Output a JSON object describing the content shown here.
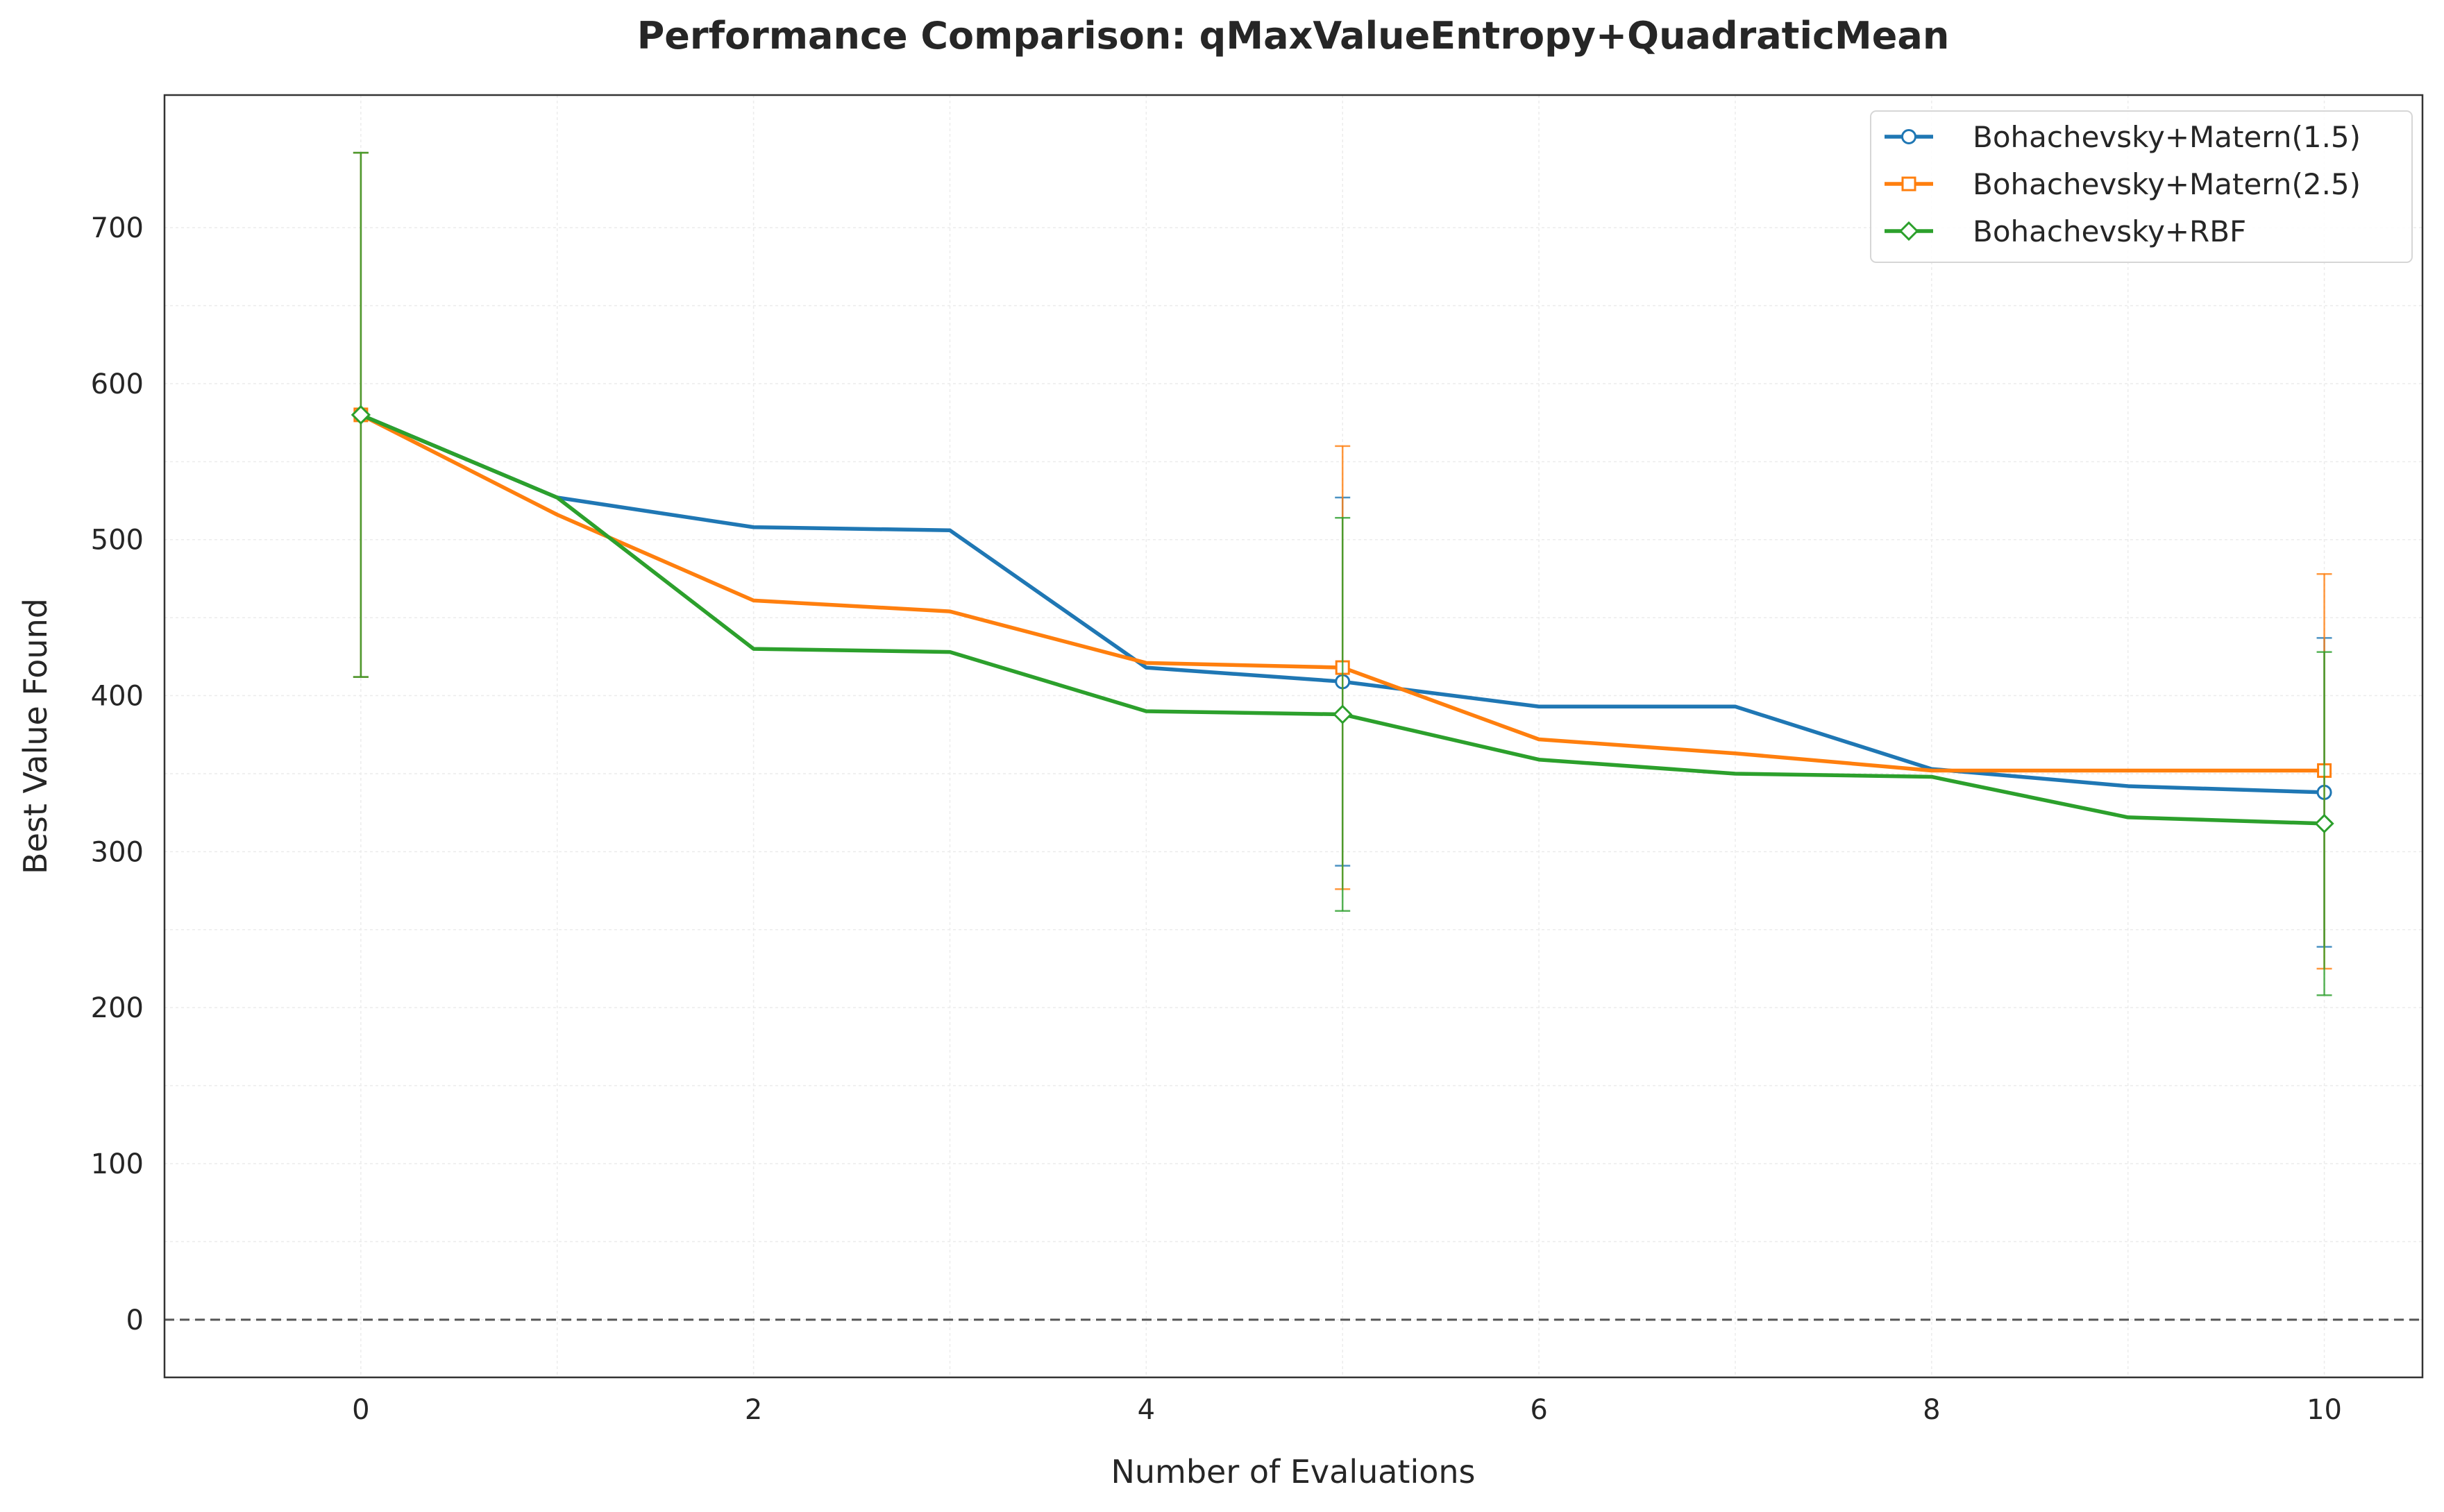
{
  "chart_data": {
    "type": "line",
    "title": "Performance Comparison: qMaxValueEntropy+QuadraticMean",
    "xlabel": "Number of Evaluations",
    "ylabel": "Best Value Found",
    "xlim": [
      -1,
      10.5
    ],
    "ylim": [
      -37,
      785
    ],
    "xticks": [
      0,
      2,
      4,
      6,
      8,
      10
    ],
    "yticks": [
      0,
      100,
      200,
      300,
      400,
      500,
      600,
      700
    ],
    "grid": true,
    "reference_line": {
      "y": 0,
      "style": "dashed",
      "color": "#555555"
    },
    "legend_position": "top-right",
    "x": [
      0,
      1,
      2,
      3,
      4,
      5,
      6,
      7,
      8,
      9,
      10
    ],
    "series": [
      {
        "name": "Bohachevsky+Matern(1.5)",
        "color": "#1f77b4",
        "marker": "circle",
        "values": [
          580,
          527,
          508,
          506,
          418,
          409,
          393,
          393,
          353,
          342,
          338
        ],
        "error_bars": [
          {
            "x": 0,
            "low": 412,
            "high": 748
          },
          {
            "x": 5,
            "low": 291,
            "high": 527
          },
          {
            "x": 10,
            "low": 239,
            "high": 437
          }
        ]
      },
      {
        "name": "Bohachevsky+Matern(2.5)",
        "color": "#ff7f0e",
        "marker": "square",
        "values": [
          580,
          516,
          461,
          454,
          421,
          418,
          372,
          363,
          352,
          352,
          352
        ],
        "error_bars": [
          {
            "x": 0,
            "low": 412,
            "high": 748
          },
          {
            "x": 5,
            "low": 276,
            "high": 560
          },
          {
            "x": 10,
            "low": 225,
            "high": 478
          }
        ]
      },
      {
        "name": "Bohachevsky+RBF",
        "color": "#2ca02c",
        "marker": "diamond",
        "values": [
          580,
          527,
          430,
          428,
          390,
          388,
          359,
          350,
          348,
          322,
          318
        ],
        "error_bars": [
          {
            "x": 0,
            "low": 412,
            "high": 748
          },
          {
            "x": 5,
            "low": 262,
            "high": 514
          },
          {
            "x": 10,
            "low": 208,
            "high": 428
          }
        ]
      }
    ]
  }
}
